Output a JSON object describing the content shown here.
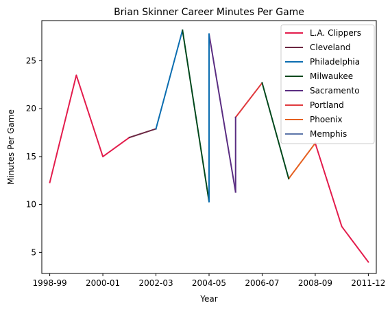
{
  "chart_data": {
    "type": "line",
    "title": "Brian Skinner Career Minutes Per Game",
    "xlabel": "Year",
    "ylabel": "Minutes Per Game",
    "x_tick_labels": [
      "1998-99",
      "2000-01",
      "2002-03",
      "2004-05",
      "2006-07",
      "2008-09",
      "2011-12"
    ],
    "y_ticks": [
      5,
      10,
      15,
      20,
      25
    ],
    "xlim": [
      -0.3,
      12.3
    ],
    "ylim": [
      2.8,
      29.2
    ],
    "grid": false,
    "legend_position": "top-right",
    "series": [
      {
        "name": "L.A. Clippers",
        "color": "#e31c4c",
        "points": [
          [
            0,
            12.3
          ],
          [
            1,
            23.5
          ],
          [
            2,
            15.0
          ],
          [
            3,
            17.0
          ]
        ]
      },
      {
        "name": "Cleveland",
        "color": "#6b2742",
        "points": [
          [
            3,
            17.0
          ],
          [
            4,
            17.9
          ]
        ]
      },
      {
        "name": "Philadelphia",
        "color": "#0a6db0",
        "points": [
          [
            4,
            17.9
          ],
          [
            5,
            28.2
          ]
        ]
      },
      {
        "name": "Milwaukee",
        "color": "#00471b",
        "points": [
          [
            5,
            28.2
          ],
          [
            6,
            10.3
          ]
        ]
      },
      {
        "name": "Sacramento",
        "color": "#5a2d82",
        "points": [
          [
            6,
            27.8
          ],
          [
            7,
            11.3
          ]
        ]
      },
      {
        "name": "Portland",
        "color": "#e03a3e",
        "points": [
          [
            7,
            19.1
          ],
          [
            8,
            22.7
          ]
        ]
      },
      {
        "name": "Phoenix",
        "color": "#e56020",
        "points": [
          [
            9,
            12.7
          ],
          [
            10,
            16.4
          ]
        ]
      },
      {
        "name": "Memphis",
        "color": "#5d76a9",
        "points": []
      },
      {
        "name": "",
        "color": "#0a6db0",
        "points": [
          [
            6,
            10.3
          ],
          [
            6,
            27.8
          ]
        ]
      },
      {
        "name": "",
        "color": "#5a2d82",
        "points": [
          [
            7,
            11.3
          ],
          [
            7,
            19.1
          ]
        ]
      },
      {
        "name": "",
        "color": "#00471b",
        "points": [
          [
            8,
            22.7
          ],
          [
            9,
            12.7
          ]
        ]
      },
      {
        "name": "",
        "color": "#e31c4c",
        "points": [
          [
            10,
            16.4
          ],
          [
            11,
            7.7
          ],
          [
            12,
            4.0
          ]
        ]
      }
    ]
  }
}
